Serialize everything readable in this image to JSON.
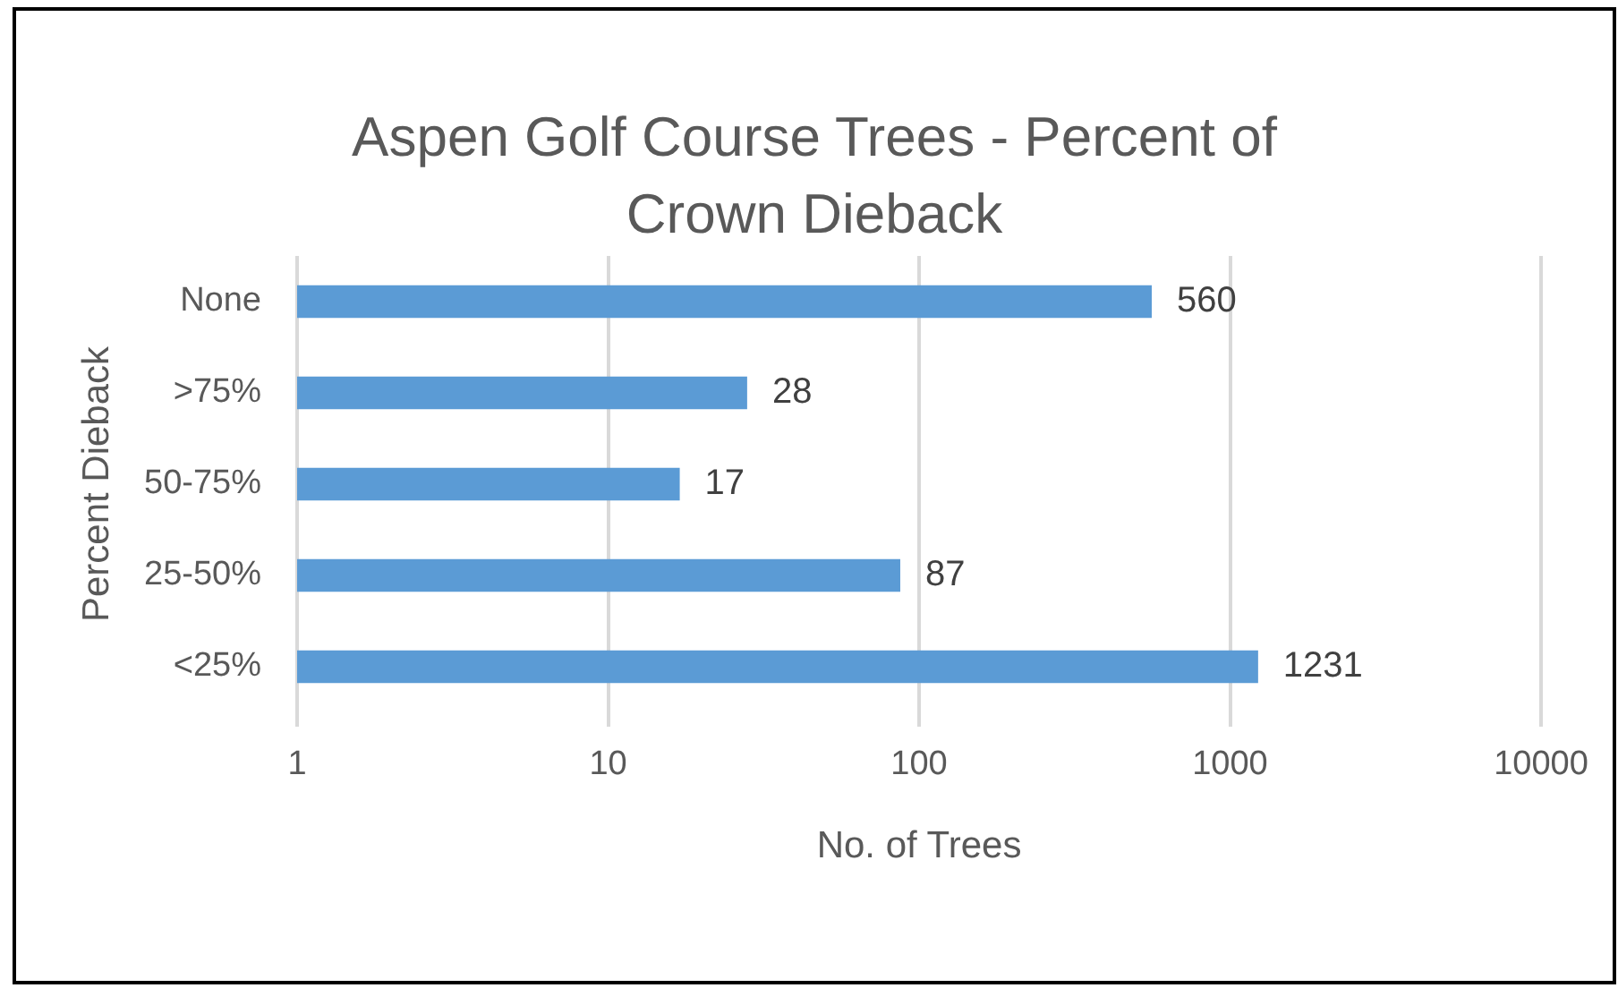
{
  "chart_data": {
    "type": "bar",
    "orientation": "horizontal",
    "title": "Aspen Golf Course Trees - Percent of Crown Dieback",
    "xlabel": "No. of Trees",
    "ylabel": "Percent Dieback",
    "categories": [
      "None",
      ">75%",
      "50-75%",
      "25-50%",
      "<25%"
    ],
    "values": [
      560,
      28,
      17,
      87,
      1231
    ],
    "color": "#5b9bd5",
    "log": "x",
    "xlim": [
      1,
      10000
    ],
    "xticks": [
      1,
      10,
      100,
      1000,
      10000
    ],
    "grid": "x",
    "data_labels": true
  }
}
